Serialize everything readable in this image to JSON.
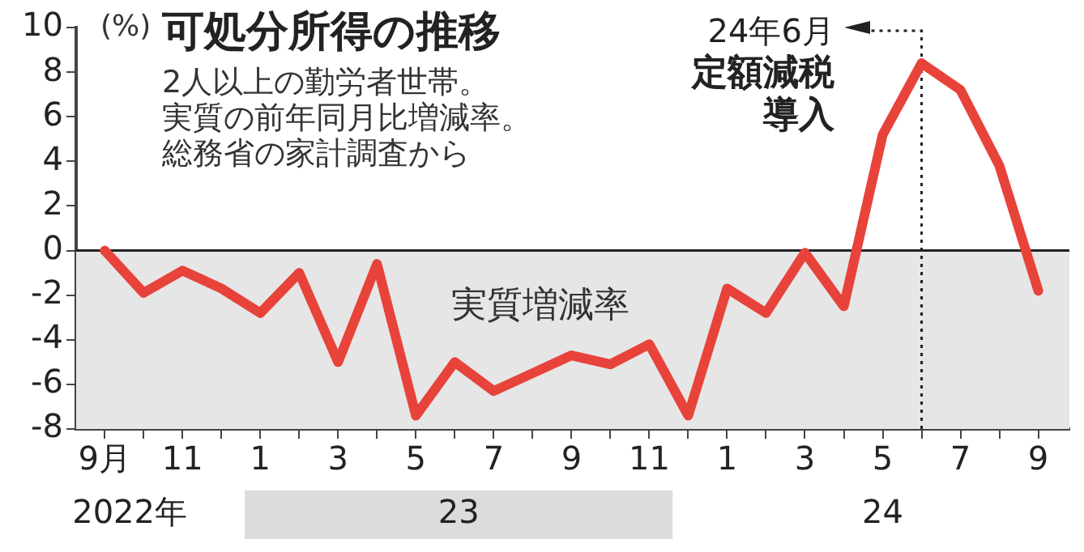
{
  "chart_data": {
    "type": "line",
    "title": "可処分所得の推移",
    "subtitle": "2人以上の勤労者世帯。実質の前年同月比増減率。総務省の家計調査から",
    "ylabel": "(%)",
    "x": [
      "2022-09",
      "2022-10",
      "2022-11",
      "2022-12",
      "2023-01",
      "2023-02",
      "2023-03",
      "2023-04",
      "2023-05",
      "2023-06",
      "2023-07",
      "2023-08",
      "2023-09",
      "2023-10",
      "2023-11",
      "2023-12",
      "2024-01",
      "2024-02",
      "2024-03",
      "2024-04",
      "2024-05",
      "2024-06",
      "2024-07",
      "2024-08",
      "2024-09"
    ],
    "series": [
      {
        "color": "#e8433a",
        "values": [
          0,
          -1.9,
          -0.9,
          -1.7,
          -2.8,
          -1.0,
          -5.0,
          -0.6,
          -7.4,
          -5.0,
          -6.3,
          -5.5,
          -4.7,
          -5.1,
          -4.2,
          -7.4,
          -1.7,
          -2.8,
          -0.1,
          -2.5,
          5.2,
          8.4,
          7.2,
          3.8,
          -1.8
        ]
      }
    ],
    "xlim": [
      "2022-08-09",
      "2024-09-25"
    ],
    "xticks": [
      {
        "value": "2022-09",
        "label": "9月"
      },
      {
        "value": "2022-10",
        "label": null
      },
      {
        "value": "2022-11",
        "label": "11"
      },
      {
        "value": "2022-12",
        "label": null
      },
      {
        "value": "2023-01",
        "label": "1"
      },
      {
        "value": "2023-02",
        "label": null
      },
      {
        "value": "2023-03",
        "label": "3"
      },
      {
        "value": "2023-04",
        "label": null
      },
      {
        "value": "2023-05",
        "label": "5"
      },
      {
        "value": "2023-06",
        "label": null
      },
      {
        "value": "2023-07",
        "label": "7"
      },
      {
        "value": "2023-08",
        "label": null
      },
      {
        "value": "2023-09",
        "label": "9"
      },
      {
        "value": "2023-10",
        "label": null
      },
      {
        "value": "2023-11",
        "label": "11"
      },
      {
        "value": "2023-12",
        "label": null
      },
      {
        "value": "2024-01",
        "label": "1"
      },
      {
        "value": "2024-02",
        "label": null
      },
      {
        "value": "2024-03",
        "label": "3"
      },
      {
        "value": "2024-04",
        "label": null
      },
      {
        "value": "2024-05",
        "label": "5"
      },
      {
        "value": "2024-06",
        "label": null
      },
      {
        "value": "2024-07",
        "label": "7"
      },
      {
        "value": "2024-08",
        "label": null
      },
      {
        "value": "2024-09",
        "label": "9"
      }
    ],
    "ylim": [
      -8,
      10
    ],
    "yticks": [
      -8,
      -6,
      -4,
      -2,
      0,
      2,
      4,
      6,
      8,
      10
    ],
    "bands": [
      {
        "axis": "y",
        "from": -8,
        "to": 0,
        "label": "実質増減率",
        "color": "#e6e6e6"
      }
    ],
    "ref_lines": [
      {
        "axis": "x",
        "value": "2024-06",
        "label": "定額減税導入",
        "line_style": "dotted"
      },
      {
        "axis": "y",
        "value": 0,
        "line_style": "solid"
      }
    ],
    "annotations": [
      "2022年",
      "23",
      "24",
      {
        "text": "24年6月",
        "x": "2024-06",
        "y": 10
      }
    ],
    "grid": false,
    "legend": false,
    "marker": "none",
    "line_style": "solid"
  }
}
